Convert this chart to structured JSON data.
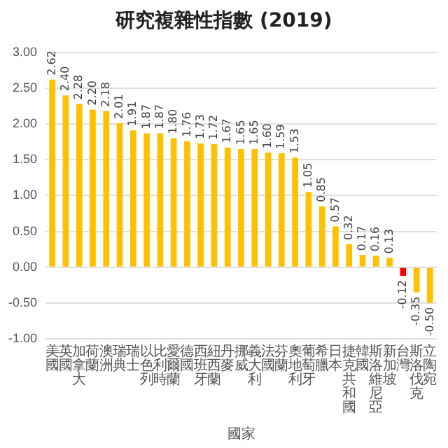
{
  "chart_data": {
    "type": "bar",
    "title": "研究複雜性指數 (2019)",
    "xlabel": "國家",
    "categories": [
      "美國",
      "英國",
      "加拿大",
      "荷蘭",
      "澳洲",
      "瑞典",
      "瑞士",
      "以色列",
      "比利時",
      "愛爾蘭",
      "德國",
      "西班牙",
      "紐西蘭",
      "丹麥",
      "挪威",
      "義大利",
      "法國",
      "芬蘭",
      "奧地利",
      "葡萄牙",
      "希臘",
      "日本",
      "捷克共和國",
      "韓國",
      "斯洛維尼亞",
      "新加坡",
      "台灣",
      "斯洛伐克",
      "立陶宛"
    ],
    "values": [
      2.62,
      2.4,
      2.28,
      2.2,
      2.18,
      2.01,
      1.91,
      1.87,
      1.87,
      1.8,
      1.76,
      1.73,
      1.72,
      1.67,
      1.65,
      1.65,
      1.6,
      1.59,
      1.53,
      1.05,
      0.85,
      0.57,
      0.32,
      0.17,
      0.16,
      0.13,
      -0.12,
      -0.35,
      -0.5
    ],
    "colors": [
      "#ffc000",
      "#ffc000",
      "#ffc000",
      "#ffc000",
      "#ffc000",
      "#ffc000",
      "#ffc000",
      "#ffc000",
      "#ffc000",
      "#ffc000",
      "#ffc000",
      "#ffc000",
      "#ffc000",
      "#ffc000",
      "#ffc000",
      "#ffc000",
      "#ffc000",
      "#ffc000",
      "#ffc000",
      "#ffc000",
      "#ffc000",
      "#ffc000",
      "#ffc000",
      "#ffc000",
      "#ffc000",
      "#ffc000",
      "#ff0000",
      "#ffc000",
      "#ffc000"
    ],
    "ylim": [
      -1,
      3
    ],
    "yticks": [
      {
        "value": -1,
        "label": "-1.00"
      },
      {
        "value": -0.5,
        "label": "-0.50"
      },
      {
        "value": 0,
        "label": "0.00"
      },
      {
        "value": 0.5,
        "label": "0.50"
      },
      {
        "value": 1,
        "label": "1.00"
      },
      {
        "value": 1.5,
        "label": "1.50"
      },
      {
        "value": 2,
        "label": "2.00"
      },
      {
        "value": 2.5,
        "label": "2.50"
      },
      {
        "value": 3,
        "label": "3.00"
      }
    ],
    "value_labels": [
      "2.62",
      "2.40",
      "2.28",
      "2.20",
      "2.18",
      "2.01",
      "1.91",
      "1.87",
      "1.87",
      "1.80",
      "1.76",
      "1.73",
      "1.72",
      "1.67",
      "1.65",
      "1.65",
      "1.60",
      "1.59",
      "1.53",
      "1.05",
      "0.85",
      "0.57",
      "0.32",
      "0.17",
      "0.16",
      "0.13",
      "-0.12",
      "-0.35",
      "-0.50"
    ],
    "grid": "y",
    "legend": false
  }
}
